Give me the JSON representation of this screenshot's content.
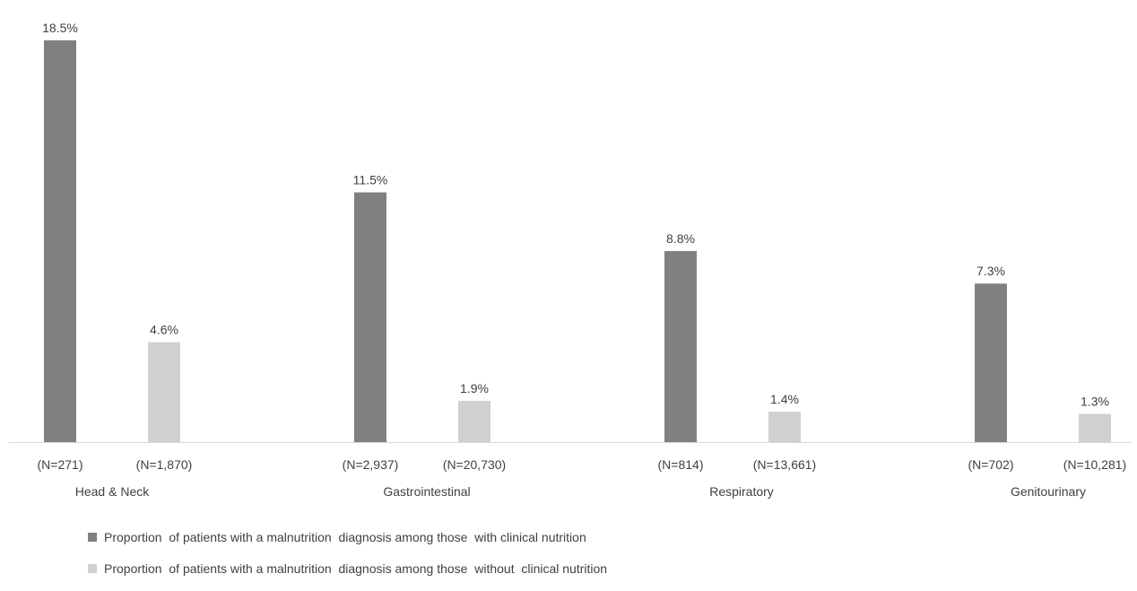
{
  "chart_data": {
    "type": "bar",
    "categories": [
      "Head & Neck",
      "Gastrointestinal",
      "Respiratory",
      "Genitourinary"
    ],
    "ylim": [
      0,
      18.5
    ],
    "series": [
      {
        "name": "Proportion  of patients with a malnutrition  diagnosis among those  with clinical nutrition",
        "color": "#808080",
        "values": [
          18.5,
          11.5,
          8.8,
          7.3
        ],
        "value_labels": [
          "18.5%",
          "11.5%",
          "8.8%",
          "7.3%"
        ],
        "n_labels": [
          "(N=271)",
          "(N=2,937)",
          "(N=814)",
          "(N=702)"
        ]
      },
      {
        "name": "Proportion  of patients with a malnutrition  diagnosis among those  without  clinical nutrition",
        "color": "#d0d0d0",
        "values": [
          4.6,
          1.9,
          1.4,
          1.3
        ],
        "value_labels": [
          "4.6%",
          "1.9%",
          "1.4%",
          "1.3%"
        ],
        "n_labels": [
          "(N=1,870)",
          "(N=20,730)",
          "(N=13,661)",
          "(N=10,281)"
        ]
      }
    ],
    "grid": false,
    "legend_position": "bottom-left"
  }
}
